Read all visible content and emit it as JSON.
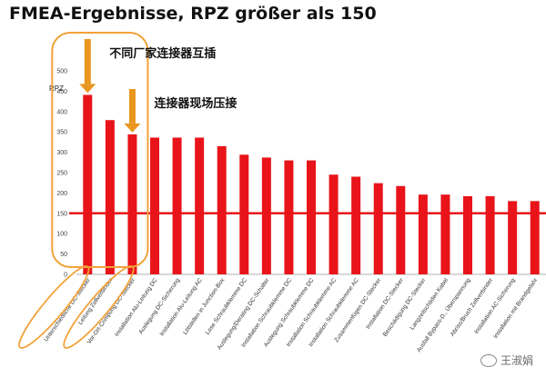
{
  "chart_data": {
    "type": "bar",
    "title": "FMEA-Ergebnisse, RPZ größer als  150",
    "ylabel": "RPZ",
    "xlabel": "",
    "ylim": [
      0,
      500
    ],
    "yticks": [
      0,
      50,
      100,
      150,
      200,
      250,
      300,
      350,
      400,
      450,
      500
    ],
    "categories": [
      "Unterschiedliche DC-Stecker",
      "Leitung Zellverbinder",
      "Vor-Ort-Crimpung DC-Stecker",
      "Installation Alu-Leitung DC",
      "Auslegung DC-Sicherung",
      "Installation Alu-Leitung AC",
      "Lötstellen in Junction-Box",
      "Lose Schraubklemme DC",
      "Auslegung/Derating DC-Schalter",
      "Installation Schraubklemme DC",
      "Auslegung Schraubklemme DC",
      "Installation Schraubklemme AC",
      "Installation Schraubklemme AC",
      "Zusammenfügen DC-Stecker",
      "Installation DC-Stecker",
      "Beschädigung DC-Stecker",
      "Langzeitschäden Kabel",
      "Ausfall Bypass-D., Überspannung",
      "Abriss/Bruch Zellverbinder",
      "Installation AC-Sicherung",
      "Installation mit Brandgefahr"
    ],
    "values": [
      441,
      379,
      344,
      336,
      336,
      336,
      315,
      294,
      287,
      280,
      280,
      245,
      240,
      224,
      217,
      196,
      196,
      192,
      192,
      180,
      180
    ],
    "threshold": 150,
    "bar_color": "#e8141a",
    "threshold_color": "#e8141a",
    "highlight_color": "#f2a23a",
    "arrow_color": "#e8961e",
    "grid": false,
    "annotations": [
      {
        "text": "不同厂家连接器互插",
        "bar_index": 0
      },
      {
        "text": "连接器现场压接",
        "bar_index": 2
      }
    ],
    "highlighted_bars": [
      0,
      1,
      2
    ]
  },
  "watermark": {
    "text": "王淑娟",
    "icon": "wechat-icon"
  }
}
